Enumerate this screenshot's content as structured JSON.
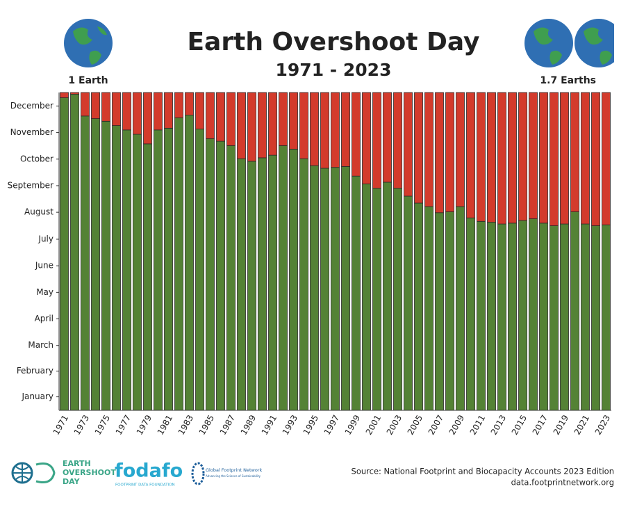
{
  "chart_data": {
    "type": "stacked_bar",
    "title": "Earth Overshoot Day",
    "subtitle": "1971 - 2023",
    "annotations": [
      "1 Earth",
      "1.7 Earths"
    ],
    "categories": [
      "1971",
      null,
      "1973",
      null,
      "1975",
      null,
      "1977",
      null,
      "1979",
      null,
      "1981",
      null,
      "1983",
      null,
      "1985",
      null,
      "1987",
      null,
      "1989",
      null,
      "1991",
      null,
      "1993",
      null,
      "1995",
      null,
      "1997",
      null,
      "1999",
      null,
      "2001",
      null,
      "2003",
      null,
      "2005",
      null,
      "2007",
      null,
      "2009",
      null,
      "2011",
      null,
      "2013",
      null,
      "2015",
      null,
      "2017",
      null,
      "2019",
      null,
      "2021",
      null,
      "2023"
    ],
    "series": [
      {
        "color": "#548235",
        "values": [
          359,
          363,
          338,
          335,
          332,
          327,
          322,
          317,
          306,
          322,
          324,
          336,
          339,
          323,
          312,
          309,
          304,
          289,
          286,
          290,
          293,
          304,
          300,
          289,
          281,
          278,
          279,
          280,
          269,
          260,
          255,
          262,
          255,
          246,
          238,
          234,
          227,
          228,
          234,
          221,
          217,
          216,
          214,
          215,
          218,
          220,
          215,
          212,
          214,
          228,
          214,
          212,
          213
        ]
      },
      {
        "color": "#d33b2c",
        "values": [
          6,
          2,
          27,
          30,
          33,
          38,
          43,
          48,
          59,
          43,
          41,
          29,
          26,
          42,
          53,
          56,
          61,
          76,
          79,
          75,
          72,
          61,
          65,
          76,
          84,
          87,
          86,
          85,
          96,
          105,
          110,
          103,
          110,
          119,
          127,
          131,
          138,
          137,
          131,
          144,
          148,
          149,
          151,
          150,
          147,
          145,
          150,
          153,
          151,
          137,
          151,
          153,
          152
        ]
      }
    ],
    "ylim": [
      0,
      365
    ],
    "yticks": [
      {
        "value": 15.5,
        "label": "January"
      },
      {
        "value": 45,
        "label": "February"
      },
      {
        "value": 74.5,
        "label": "March"
      },
      {
        "value": 105,
        "label": "April"
      },
      {
        "value": 135.5,
        "label": "May"
      },
      {
        "value": 166,
        "label": "June"
      },
      {
        "value": 196.5,
        "label": "July"
      },
      {
        "value": 227.5,
        "label": "August"
      },
      {
        "value": 258,
        "label": "September"
      },
      {
        "value": 288.5,
        "label": "October"
      },
      {
        "value": 319,
        "label": "November"
      },
      {
        "value": 349.5,
        "label": "December"
      }
    ],
    "grid": false
  },
  "footer": {
    "source": [
      "Source: National Footprint and Biocapacity Accounts 2023 Edition",
      "data.footprintnetwork.org"
    ],
    "logos": [
      [
        "EARTH",
        "OVERSHOOT",
        "DAY"
      ],
      [
        "fodafo",
        "FOOTPRINT DATA FOUNDATION"
      ],
      [
        "Global Footprint Network",
        "Advancing the Science of Sustainability"
      ]
    ]
  }
}
